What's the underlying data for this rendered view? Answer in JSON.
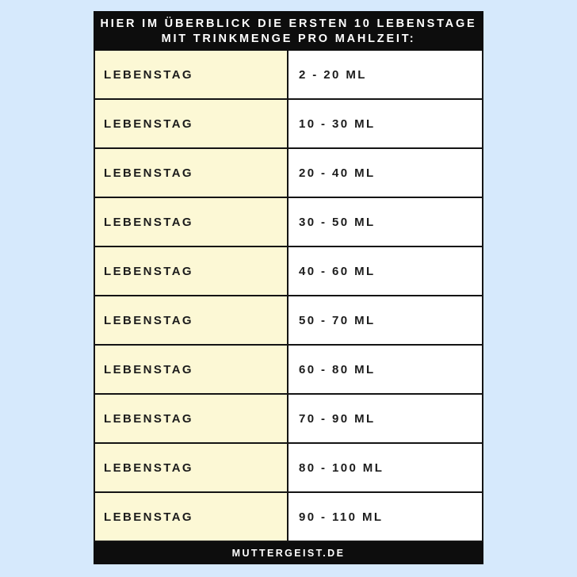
{
  "page": {
    "background_color": "#d6e9fc"
  },
  "banner": {
    "lines": [
      "HIER IM ÜBERBLICK DIE ERSTEN 10 LEBENSTAGE",
      "MIT TRINKMENGE PRO MAHLZEIT:"
    ],
    "background_color": "#0d0d0d",
    "text_color": "#ffffff"
  },
  "table": {
    "label_cell_color": "#fcf8d5",
    "value_cell_color": "#ffffff",
    "border_color": "#141414",
    "rows": [
      {
        "label": "LEBENSTAG",
        "value": "2 - 20 ML"
      },
      {
        "label": "LEBENSTAG",
        "value": "10 - 30 ML"
      },
      {
        "label": "LEBENSTAG",
        "value": "20 - 40 ML"
      },
      {
        "label": "LEBENSTAG",
        "value": "30 - 50 ML"
      },
      {
        "label": "LEBENSTAG",
        "value": "40 - 60 ML"
      },
      {
        "label": "LEBENSTAG",
        "value": "50 - 70 ML"
      },
      {
        "label": "LEBENSTAG",
        "value": "60 - 80 ML"
      },
      {
        "label": "LEBENSTAG",
        "value": "70 - 90 ML"
      },
      {
        "label": "LEBENSTAG",
        "value": "80 - 100 ML"
      },
      {
        "label": "LEBENSTAG",
        "value": "90 - 110 ML"
      }
    ]
  },
  "footer": {
    "text": "MUTTERGEIST.DE",
    "background_color": "#0d0d0d",
    "text_color": "#ffffff"
  }
}
